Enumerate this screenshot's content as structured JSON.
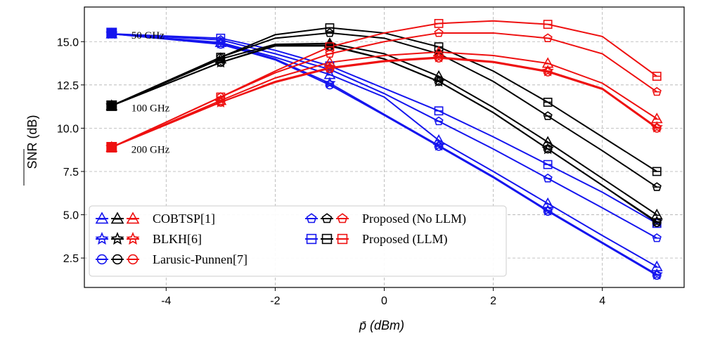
{
  "chart_data": {
    "type": "line",
    "title": "",
    "xlabel": "p̄ (dBm)",
    "ylabel": "SNR (dB)",
    "xlim": [
      -5.5,
      5.5
    ],
    "ylim": [
      0.8,
      17.0
    ],
    "xticks": [
      -4,
      -2,
      0,
      2,
      4
    ],
    "xtick_labels": [
      "-4",
      "-2",
      "0",
      "2",
      "4"
    ],
    "yticks": [
      2.5,
      5.0,
      7.5,
      10.0,
      12.5,
      15.0
    ],
    "ytick_labels": [
      "2.5",
      "5.0",
      "7.5",
      "10.0",
      "12.5",
      "15.0"
    ],
    "grid": true,
    "x": [
      -5,
      -3,
      -2,
      -1,
      0,
      1,
      2,
      3,
      4,
      5
    ],
    "marker_x": [
      -5,
      -3,
      -1,
      1,
      3,
      5
    ],
    "colors": {
      "50 GHz": "#1515ee",
      "100 GHz": "#000000",
      "200 GHz": "#ee1010"
    },
    "annotations": [
      {
        "text": "50 GHz",
        "x": -5,
        "y": 15.5
      },
      {
        "text": "100 GHz",
        "x": -5,
        "y": 11.3
      },
      {
        "text": "200 GHz",
        "x": -5,
        "y": 8.9
      }
    ],
    "series": [
      {
        "name": "COBTSP[1]",
        "group": "50 GHz",
        "marker": "triangle",
        "values": [
          15.45,
          14.95,
          14.1,
          13.1,
          11.8,
          9.3,
          7.5,
          5.65,
          3.8,
          2.0
        ]
      },
      {
        "name": "BLKH[6]",
        "group": "50 GHz",
        "marker": "star",
        "values": [
          15.45,
          14.9,
          14.0,
          12.6,
          10.8,
          9.0,
          7.2,
          5.25,
          3.4,
          1.55
        ]
      },
      {
        "name": "Larusic-Punnen[7]",
        "group": "50 GHz",
        "marker": "circle",
        "values": [
          15.45,
          14.85,
          13.95,
          12.5,
          10.75,
          8.95,
          7.15,
          5.2,
          3.35,
          1.5
        ]
      },
      {
        "name": "Proposed (No LLM)",
        "group": "50 GHz",
        "marker": "pentagon",
        "values": [
          15.45,
          15.1,
          14.3,
          13.4,
          12.0,
          10.4,
          8.8,
          7.1,
          5.4,
          3.65
        ]
      },
      {
        "name": "Proposed (LLM)",
        "group": "50 GHz",
        "marker": "square",
        "values": [
          15.45,
          15.2,
          14.5,
          13.6,
          12.3,
          11.0,
          9.5,
          7.9,
          6.3,
          4.5
        ]
      },
      {
        "name": "COBTSP[1]",
        "group": "100 GHz",
        "marker": "triangle",
        "values": [
          11.3,
          14.0,
          14.85,
          14.9,
          14.3,
          13.0,
          11.2,
          9.2,
          7.1,
          5.0
        ]
      },
      {
        "name": "BLKH[6]",
        "group": "100 GHz",
        "marker": "star",
        "values": [
          11.3,
          13.8,
          14.8,
          14.8,
          14.0,
          12.7,
          10.9,
          8.8,
          6.7,
          4.6
        ]
      },
      {
        "name": "Larusic-Punnen[7]",
        "group": "100 GHz",
        "marker": "circle",
        "values": [
          11.3,
          13.8,
          14.75,
          14.75,
          14.0,
          12.7,
          10.9,
          8.8,
          6.7,
          4.55
        ]
      },
      {
        "name": "Proposed (No LLM)",
        "group": "100 GHz",
        "marker": "pentagon",
        "values": [
          11.3,
          14.1,
          15.2,
          15.5,
          15.2,
          14.3,
          12.7,
          10.7,
          8.7,
          6.6
        ]
      },
      {
        "name": "Proposed (LLM)",
        "group": "100 GHz",
        "marker": "square",
        "values": [
          11.3,
          14.1,
          15.4,
          15.8,
          15.5,
          14.7,
          13.3,
          11.5,
          9.5,
          7.5
        ]
      },
      {
        "name": "COBTSP[1]",
        "group": "200 GHz",
        "marker": "triangle",
        "values": [
          8.9,
          11.6,
          12.9,
          13.8,
          14.2,
          14.4,
          14.2,
          13.75,
          12.6,
          10.55
        ]
      },
      {
        "name": "BLKH[6]",
        "group": "200 GHz",
        "marker": "star",
        "values": [
          8.9,
          11.5,
          12.7,
          13.5,
          13.9,
          14.1,
          13.85,
          13.3,
          12.3,
          10.05
        ]
      },
      {
        "name": "Larusic-Punnen[7]",
        "group": "200 GHz",
        "marker": "circle",
        "values": [
          8.9,
          11.5,
          12.65,
          13.45,
          13.85,
          14.05,
          13.8,
          13.25,
          12.25,
          10.0
        ]
      },
      {
        "name": "Proposed (No LLM)",
        "group": "200 GHz",
        "marker": "pentagon",
        "values": [
          8.9,
          11.8,
          13.2,
          14.3,
          15.0,
          15.5,
          15.5,
          15.2,
          14.3,
          12.1
        ]
      },
      {
        "name": "Proposed (LLM)",
        "group": "200 GHz",
        "marker": "square",
        "values": [
          8.9,
          11.8,
          13.3,
          14.7,
          15.5,
          16.05,
          16.2,
          16.0,
          15.3,
          13.0
        ]
      }
    ],
    "legend": {
      "placement": "bottom-left",
      "entries": [
        {
          "label": "COBTSP[1]",
          "marker": "triangle"
        },
        {
          "label": "BLKH[6]",
          "marker": "star"
        },
        {
          "label": "Larusic-Punnen[7]",
          "marker": "circle"
        },
        {
          "label": "Proposed (No LLM)",
          "marker": "pentagon"
        },
        {
          "label": "Proposed (LLM)",
          "marker": "square"
        }
      ]
    }
  }
}
